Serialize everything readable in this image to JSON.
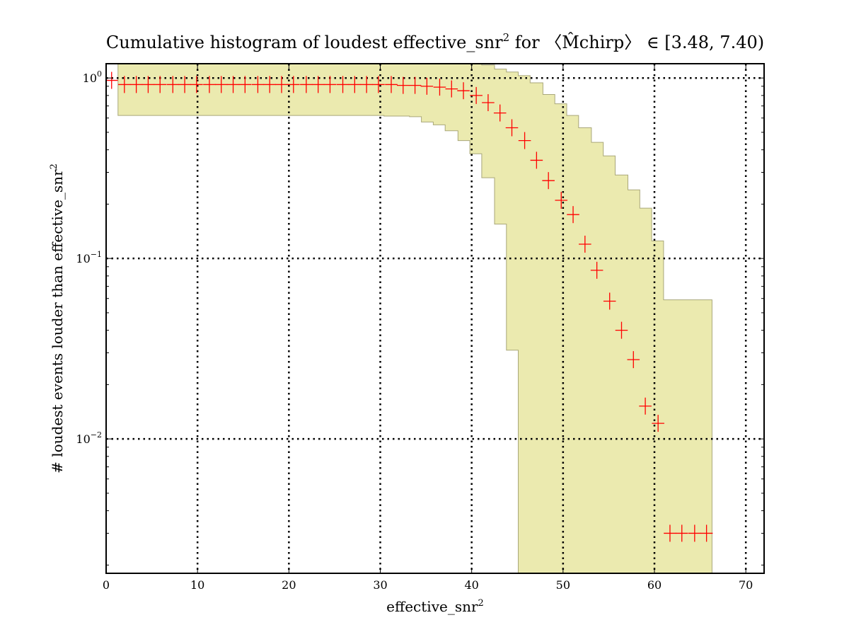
{
  "chart_data": {
    "type": "scatter",
    "title_main": "Cumulative histogram of loudest effective_snr",
    "title_sup": "2",
    "title_for": " for ",
    "title_range": "〈M̂chirp〉 ∈ [3.48, 7.40)",
    "xlabel_main": "effective_snr",
    "xlabel_sup": "2",
    "ylabel_main": "# loudest events louder than effective_snr",
    "ylabel_sup": "2",
    "xlim": [
      0,
      72
    ],
    "ylim": [
      0.0018,
      1.2
    ],
    "yscale": "log",
    "grid": true,
    "x_ticks": [
      0,
      10,
      20,
      30,
      40,
      50,
      60,
      70
    ],
    "x_tick_labels": [
      "0",
      "10",
      "20",
      "30",
      "40",
      "50",
      "60",
      "70"
    ],
    "y_ticks": [
      0.01,
      0.1,
      1
    ],
    "y_tick_labels": [
      {
        "base": "10",
        "exp": "−2"
      },
      {
        "base": "10",
        "exp": "−1"
      },
      {
        "base": "10",
        "exp": "0"
      }
    ],
    "series": [
      {
        "kind": "points",
        "color": "#ff0000",
        "x_halfwidth": 0.68,
        "points": [
          {
            "x": 0.6,
            "y": 0.97
          },
          {
            "x": 2.0,
            "y": 0.92
          },
          {
            "x": 3.3,
            "y": 0.92
          },
          {
            "x": 4.6,
            "y": 0.92
          },
          {
            "x": 5.9,
            "y": 0.92
          },
          {
            "x": 7.3,
            "y": 0.92
          },
          {
            "x": 8.6,
            "y": 0.92
          },
          {
            "x": 9.9,
            "y": 0.92
          },
          {
            "x": 11.3,
            "y": 0.92
          },
          {
            "x": 12.6,
            "y": 0.92
          },
          {
            "x": 13.9,
            "y": 0.92
          },
          {
            "x": 15.2,
            "y": 0.92
          },
          {
            "x": 16.6,
            "y": 0.92
          },
          {
            "x": 17.9,
            "y": 0.92
          },
          {
            "x": 19.2,
            "y": 0.92
          },
          {
            "x": 20.5,
            "y": 0.92
          },
          {
            "x": 21.9,
            "y": 0.92
          },
          {
            "x": 23.2,
            "y": 0.92
          },
          {
            "x": 24.5,
            "y": 0.92
          },
          {
            "x": 25.9,
            "y": 0.92
          },
          {
            "x": 27.2,
            "y": 0.92
          },
          {
            "x": 28.5,
            "y": 0.92
          },
          {
            "x": 29.8,
            "y": 0.92
          },
          {
            "x": 31.2,
            "y": 0.92
          },
          {
            "x": 32.5,
            "y": 0.91
          },
          {
            "x": 33.8,
            "y": 0.91
          },
          {
            "x": 35.1,
            "y": 0.9
          },
          {
            "x": 36.5,
            "y": 0.89
          },
          {
            "x": 37.8,
            "y": 0.87
          },
          {
            "x": 39.1,
            "y": 0.85
          },
          {
            "x": 40.5,
            "y": 0.8
          },
          {
            "x": 41.8,
            "y": 0.73
          },
          {
            "x": 43.1,
            "y": 0.64
          },
          {
            "x": 44.4,
            "y": 0.53
          },
          {
            "x": 45.8,
            "y": 0.45
          },
          {
            "x": 47.1,
            "y": 0.35
          },
          {
            "x": 48.4,
            "y": 0.27
          },
          {
            "x": 49.8,
            "y": 0.21
          },
          {
            "x": 51.1,
            "y": 0.175
          },
          {
            "x": 52.4,
            "y": 0.12
          },
          {
            "x": 53.7,
            "y": 0.086
          },
          {
            "x": 55.1,
            "y": 0.058
          },
          {
            "x": 56.4,
            "y": 0.04
          },
          {
            "x": 57.7,
            "y": 0.0275
          },
          {
            "x": 59.0,
            "y": 0.0152
          },
          {
            "x": 60.4,
            "y": 0.0122
          },
          {
            "x": 61.7,
            "y": 0.003
          },
          {
            "x": 63.0,
            "y": 0.003
          },
          {
            "x": 64.4,
            "y": 0.003
          },
          {
            "x": 65.7,
            "y": 0.003
          }
        ]
      },
      {
        "kind": "band",
        "color": "#ebeaaf",
        "edge_color": "#a9a77a",
        "bins": [
          {
            "x0": 1.3,
            "x1": 30.4,
            "lo": 0.62,
            "hi": 1.2
          },
          {
            "x0": 30.4,
            "x1": 33.2,
            "lo": 0.615,
            "hi": 1.2
          },
          {
            "x0": 33.2,
            "x1": 34.5,
            "lo": 0.61,
            "hi": 1.2
          },
          {
            "x0": 34.5,
            "x1": 35.8,
            "lo": 0.57,
            "hi": 1.2
          },
          {
            "x0": 35.8,
            "x1": 37.1,
            "lo": 0.55,
            "hi": 1.2
          },
          {
            "x0": 37.1,
            "x1": 38.5,
            "lo": 0.51,
            "hi": 1.2
          },
          {
            "x0": 38.5,
            "x1": 39.8,
            "lo": 0.45,
            "hi": 1.2
          },
          {
            "x0": 39.8,
            "x1": 41.1,
            "lo": 0.38,
            "hi": 1.2
          },
          {
            "x0": 41.1,
            "x1": 42.5,
            "lo": 0.28,
            "hi": 1.18
          },
          {
            "x0": 42.5,
            "x1": 43.8,
            "lo": 0.155,
            "hi": 1.12
          },
          {
            "x0": 43.8,
            "x1": 45.1,
            "lo": 0.031,
            "hi": 1.08
          },
          {
            "x0": 45.1,
            "x1": 46.4,
            "lo": 0.0018,
            "hi": 1.03
          },
          {
            "x0": 46.4,
            "x1": 47.8,
            "lo": 0.0018,
            "hi": 0.94
          },
          {
            "x0": 47.8,
            "x1": 49.1,
            "lo": 0.0018,
            "hi": 0.81
          },
          {
            "x0": 49.1,
            "x1": 50.4,
            "lo": 0.0018,
            "hi": 0.72
          },
          {
            "x0": 50.4,
            "x1": 51.7,
            "lo": 0.0018,
            "hi": 0.62
          },
          {
            "x0": 51.7,
            "x1": 53.1,
            "lo": 0.0018,
            "hi": 0.53
          },
          {
            "x0": 53.1,
            "x1": 54.4,
            "lo": 0.0018,
            "hi": 0.44
          },
          {
            "x0": 54.4,
            "x1": 55.7,
            "lo": 0.0018,
            "hi": 0.37
          },
          {
            "x0": 55.7,
            "x1": 57.1,
            "lo": 0.0018,
            "hi": 0.29
          },
          {
            "x0": 57.1,
            "x1": 58.4,
            "lo": 0.0018,
            "hi": 0.24
          },
          {
            "x0": 58.4,
            "x1": 59.7,
            "lo": 0.0018,
            "hi": 0.19
          },
          {
            "x0": 59.7,
            "x1": 61.0,
            "lo": 0.0018,
            "hi": 0.125
          },
          {
            "x0": 61.0,
            "x1": 66.3,
            "lo": 0.0018,
            "hi": 0.059
          }
        ]
      }
    ]
  }
}
